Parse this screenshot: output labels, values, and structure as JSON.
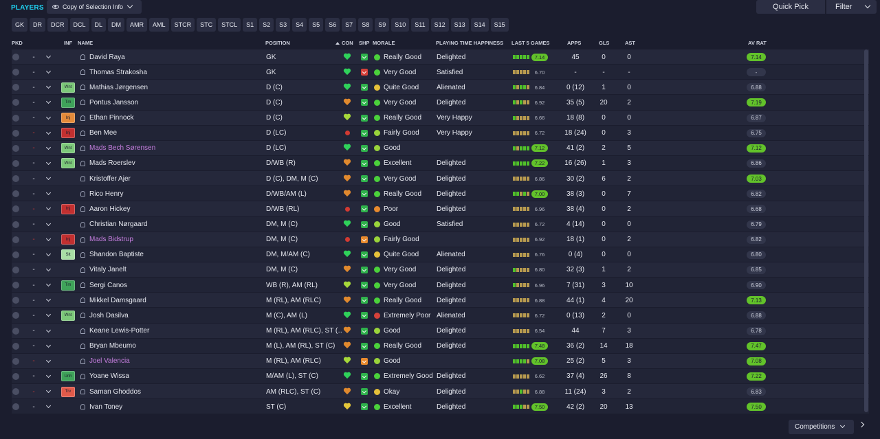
{
  "header": {
    "title": "PLAYERS",
    "view_select": "Copy of Selection Info",
    "quick_pick": "Quick Pick",
    "filter": "Filter"
  },
  "position_filters": [
    "GK",
    "DR",
    "DCR",
    "DCL",
    "DL",
    "DM",
    "AMR",
    "AML",
    "STCR",
    "STC",
    "STCL",
    "S1",
    "S2",
    "S3",
    "S4",
    "S5",
    "S6",
    "S7",
    "S8",
    "S9",
    "S10",
    "S11",
    "S12",
    "S13",
    "S14",
    "S15"
  ],
  "columns": {
    "pkd": "PKD",
    "inf": "INF",
    "name": "NAME",
    "position": "POSITION",
    "con": "CON",
    "shp": "SHP",
    "morale": "MORALE",
    "happiness": "PLAYING TIME HAPPINESS",
    "form": "LAST 5 GAMES",
    "apps": "APPS",
    "gls": "GLS",
    "ast": "AST",
    "avrat": "AV RAT"
  },
  "colors": {
    "con_green": "#2fd15a",
    "con_orange": "#e0892e",
    "con_lime": "#a6d83a",
    "con_red": "#d23a32",
    "con_yellow": "#e3c63a",
    "shp_green": "#2fb24c",
    "shp_red": "#d6413a",
    "shp_orange": "#e88a2e",
    "morale_green": "#4bd13b",
    "morale_lime": "#9ad43b",
    "morale_yellow": "#e6c13a",
    "morale_orange": "#e88a2e",
    "morale_red": "#d6413a",
    "form_green": "#51c12a",
    "form_gold": "#b79a4f"
  },
  "players": [
    {
      "pkd_red": false,
      "inf": "",
      "inf_color": "",
      "name": "David Raya",
      "pink": false,
      "position": "GK",
      "con": "heart",
      "con_color": "#2fd15a",
      "shp_color": "#2fb24c",
      "morale": "Really Good",
      "morale_color": "#4bd13b",
      "happiness": "Delighted",
      "form_bars": [
        "g",
        "g",
        "g",
        "g",
        "g"
      ],
      "form_rating": "7.14",
      "form_green": true,
      "apps": "45",
      "gls": "0",
      "ast": "0",
      "avrat": "7.14",
      "avrat_green": true
    },
    {
      "pkd_red": false,
      "inf": "",
      "inf_color": "",
      "name": "Thomas Strakosha",
      "pink": false,
      "position": "GK",
      "con": "heart",
      "con_color": "#2fd15a",
      "shp_color": "#d6413a",
      "morale": "Very Good",
      "morale_color": "#4bd13b",
      "happiness": "Satisfied",
      "form_bars": [
        "y",
        "y",
        "y",
        "y",
        "y"
      ],
      "form_rating": "6.70",
      "form_green": false,
      "apps": "-",
      "gls": "-",
      "ast": "-",
      "avrat": "-",
      "avrat_green": false
    },
    {
      "pkd_red": false,
      "inf": "Wnt",
      "inf_color": "#7dc97a",
      "name": "Mathias Jørgensen",
      "pink": false,
      "position": "D (C)",
      "con": "heart",
      "con_color": "#2fd15a",
      "shp_color": "#2fb24c",
      "morale": "Quite Good",
      "morale_color": "#e6c13a",
      "happiness": "Alienated",
      "form_bars": [
        "g",
        "y",
        "g",
        "g",
        "y"
      ],
      "form_rating": "6.84",
      "form_green": false,
      "apps": "0 (12)",
      "gls": "1",
      "ast": "0",
      "avrat": "6.88",
      "avrat_green": false
    },
    {
      "pkd_red": false,
      "inf": "Tm",
      "inf_color": "#3fa35a",
      "name": "Pontus Jansson",
      "pink": false,
      "position": "D (C)",
      "con": "heart",
      "con_color": "#e0892e",
      "shp_color": "#2fb24c",
      "morale": "Very Good",
      "morale_color": "#4bd13b",
      "happiness": "Delighted",
      "form_bars": [
        "g",
        "y",
        "g",
        "y",
        "y"
      ],
      "form_rating": "6.92",
      "form_green": false,
      "apps": "35 (5)",
      "gls": "20",
      "ast": "2",
      "avrat": "7.19",
      "avrat_green": true
    },
    {
      "pkd_red": false,
      "inf": "Inj",
      "inf_color": "#e38a3a",
      "name": "Ethan Pinnock",
      "pink": false,
      "position": "D (C)",
      "con": "heart",
      "con_color": "#a6d83a",
      "shp_color": "#2fb24c",
      "morale": "Really Good",
      "morale_color": "#4bd13b",
      "happiness": "Very Happy",
      "form_bars": [
        "g",
        "y",
        "y",
        "y",
        "y"
      ],
      "form_rating": "6.66",
      "form_green": false,
      "apps": "18 (8)",
      "gls": "0",
      "ast": "0",
      "avrat": "6.87",
      "avrat_green": false
    },
    {
      "pkd_red": true,
      "inf": "Inj",
      "inf_color": "#c23030",
      "name": "Ben Mee",
      "pink": false,
      "position": "D (LC)",
      "con": "dot",
      "con_color": "#d23a32",
      "shp_color": "#2fb24c",
      "morale": "Fairly Good",
      "morale_color": "#9ad43b",
      "happiness": "Very Happy",
      "form_bars": [
        "y",
        "y",
        "y",
        "y",
        "y"
      ],
      "form_rating": "6.72",
      "form_green": false,
      "apps": "18 (24)",
      "gls": "0",
      "ast": "3",
      "avrat": "6.75",
      "avrat_green": false
    },
    {
      "pkd_red": true,
      "inf": "Wnt",
      "inf_color": "#7dc97a",
      "name": "Mads Bech Sørensen",
      "pink": true,
      "position": "D (LC)",
      "con": "heart",
      "con_color": "#2fd15a",
      "shp_color": "#2fb24c",
      "morale": "Good",
      "morale_color": "#9ad43b",
      "happiness": "",
      "form_bars": [
        "g",
        "y",
        "g",
        "g",
        "g"
      ],
      "form_rating": "7.12",
      "form_green": true,
      "apps": "41 (2)",
      "gls": "2",
      "ast": "5",
      "avrat": "7.12",
      "avrat_green": true
    },
    {
      "pkd_red": false,
      "inf": "Wnt",
      "inf_color": "#7dc97a",
      "name": "Mads Roerslev",
      "pink": false,
      "position": "D/WB (R)",
      "con": "heart",
      "con_color": "#e0892e",
      "shp_color": "#2fb24c",
      "morale": "Excellent",
      "morale_color": "#4bd13b",
      "happiness": "Delighted",
      "form_bars": [
        "g",
        "g",
        "g",
        "g",
        "g"
      ],
      "form_rating": "7.22",
      "form_green": true,
      "apps": "16 (26)",
      "gls": "1",
      "ast": "3",
      "avrat": "6.86",
      "avrat_green": false
    },
    {
      "pkd_red": false,
      "inf": "",
      "inf_color": "",
      "name": "Kristoffer Ajer",
      "pink": false,
      "position": "D (C), DM, M (C)",
      "con": "heart",
      "con_color": "#e0892e",
      "shp_color": "#2fb24c",
      "morale": "Very Good",
      "morale_color": "#4bd13b",
      "happiness": "Delighted",
      "form_bars": [
        "y",
        "y",
        "y",
        "y",
        "y"
      ],
      "form_rating": "6.86",
      "form_green": false,
      "apps": "30 (2)",
      "gls": "6",
      "ast": "2",
      "avrat": "7.03",
      "avrat_green": true
    },
    {
      "pkd_red": false,
      "inf": "",
      "inf_color": "",
      "name": "Rico Henry",
      "pink": false,
      "position": "D/WB/AM (L)",
      "con": "heart",
      "con_color": "#e0892e",
      "shp_color": "#2fb24c",
      "morale": "Really Good",
      "morale_color": "#4bd13b",
      "happiness": "Delighted",
      "form_bars": [
        "g",
        "g",
        "y",
        "g",
        "y"
      ],
      "form_rating": "7.00",
      "form_green": true,
      "apps": "38 (3)",
      "gls": "0",
      "ast": "7",
      "avrat": "6.82",
      "avrat_green": false
    },
    {
      "pkd_red": true,
      "inf": "Inj",
      "inf_color": "#c23030",
      "name": "Aaron Hickey",
      "pink": false,
      "position": "D/WB (RL)",
      "con": "dot",
      "con_color": "#d23a32",
      "shp_color": "#2fb24c",
      "morale": "Poor",
      "morale_color": "#e88a2e",
      "happiness": "Delighted",
      "form_bars": [
        "y",
        "y",
        "y",
        "y",
        "y"
      ],
      "form_rating": "6.96",
      "form_green": false,
      "apps": "38 (4)",
      "gls": "0",
      "ast": "2",
      "avrat": "6.68",
      "avrat_green": false
    },
    {
      "pkd_red": false,
      "inf": "",
      "inf_color": "",
      "name": "Christian Nørgaard",
      "pink": false,
      "position": "DM, M (C)",
      "con": "heart",
      "con_color": "#2fd15a",
      "shp_color": "#2fb24c",
      "morale": "Good",
      "morale_color": "#9ad43b",
      "happiness": "Satisfied",
      "form_bars": [
        "y",
        "y",
        "y",
        "y",
        "y"
      ],
      "form_rating": "6.72",
      "form_green": false,
      "apps": "4 (14)",
      "gls": "0",
      "ast": "0",
      "avrat": "6.79",
      "avrat_green": false
    },
    {
      "pkd_red": true,
      "inf": "Inj",
      "inf_color": "#c23030",
      "name": "Mads Bidstrup",
      "pink": true,
      "position": "DM, M (C)",
      "con": "dot",
      "con_color": "#d23a32",
      "shp_color": "#e88a2e",
      "morale": "Fairly Good",
      "morale_color": "#9ad43b",
      "happiness": "",
      "form_bars": [
        "y",
        "y",
        "y",
        "y",
        "y"
      ],
      "form_rating": "6.92",
      "form_green": false,
      "apps": "18 (1)",
      "gls": "0",
      "ast": "2",
      "avrat": "6.82",
      "avrat_green": false
    },
    {
      "pkd_red": false,
      "inf": "Slt",
      "inf_color": "#a9dfa5",
      "name": "Shandon Baptiste",
      "pink": false,
      "position": "DM, M/AM (C)",
      "con": "heart",
      "con_color": "#2fd15a",
      "shp_color": "#2fb24c",
      "morale": "Quite Good",
      "morale_color": "#e6c13a",
      "happiness": "Alienated",
      "form_bars": [
        "y",
        "y",
        "y",
        "y",
        "y"
      ],
      "form_rating": "6.76",
      "form_green": false,
      "apps": "0 (4)",
      "gls": "0",
      "ast": "0",
      "avrat": "6.80",
      "avrat_green": false
    },
    {
      "pkd_red": false,
      "inf": "",
      "inf_color": "",
      "name": "Vitaly Janelt",
      "pink": false,
      "position": "DM, M (C)",
      "con": "heart",
      "con_color": "#e0892e",
      "shp_color": "#2fb24c",
      "morale": "Very Good",
      "morale_color": "#4bd13b",
      "happiness": "Delighted",
      "form_bars": [
        "g",
        "y",
        "y",
        "y",
        "y"
      ],
      "form_rating": "6.80",
      "form_green": false,
      "apps": "32 (3)",
      "gls": "1",
      "ast": "2",
      "avrat": "6.85",
      "avrat_green": false
    },
    {
      "pkd_red": false,
      "inf": "Tm",
      "inf_color": "#3fa35a",
      "name": "Sergi Canos",
      "pink": false,
      "position": "WB (R), AM (RL)",
      "con": "heart",
      "con_color": "#a6d83a",
      "shp_color": "#2fb24c",
      "morale": "Very Good",
      "morale_color": "#4bd13b",
      "happiness": "Delighted",
      "form_bars": [
        "g",
        "y",
        "y",
        "y",
        "y"
      ],
      "form_rating": "6.96",
      "form_green": false,
      "apps": "7 (31)",
      "gls": "3",
      "ast": "10",
      "avrat": "6.90",
      "avrat_green": false
    },
    {
      "pkd_red": false,
      "inf": "",
      "inf_color": "",
      "name": "Mikkel Damsgaard",
      "pink": false,
      "position": "M (RL), AM (RLC)",
      "con": "heart",
      "con_color": "#e0892e",
      "shp_color": "#2fb24c",
      "morale": "Really Good",
      "morale_color": "#4bd13b",
      "happiness": "Delighted",
      "form_bars": [
        "y",
        "y",
        "y",
        "y",
        "y"
      ],
      "form_rating": "6.88",
      "form_green": false,
      "apps": "44 (1)",
      "gls": "4",
      "ast": "20",
      "avrat": "7.13",
      "avrat_green": true
    },
    {
      "pkd_red": false,
      "inf": "Wnt",
      "inf_color": "#7dc97a",
      "name": "Josh Dasilva",
      "pink": false,
      "position": "M (C), AM (L)",
      "con": "heart",
      "con_color": "#2fd15a",
      "shp_color": "#2fb24c",
      "morale": "Extremely Poor",
      "morale_color": "#d6413a",
      "happiness": "Alienated",
      "form_bars": [
        "y",
        "y",
        "y",
        "y",
        "y"
      ],
      "form_rating": "6.72",
      "form_green": false,
      "apps": "0 (13)",
      "gls": "2",
      "ast": "0",
      "avrat": "6.88",
      "avrat_green": false
    },
    {
      "pkd_red": false,
      "inf": "",
      "inf_color": "",
      "name": "Keane Lewis-Potter",
      "pink": false,
      "position": "M (RL), AM (RLC), ST (…",
      "con": "heart",
      "con_color": "#e0892e",
      "shp_color": "#2fb24c",
      "morale": "Good",
      "morale_color": "#9ad43b",
      "happiness": "Delighted",
      "form_bars": [
        "y",
        "y",
        "y",
        "y",
        "y"
      ],
      "form_rating": "6.54",
      "form_green": false,
      "apps": "44",
      "gls": "7",
      "ast": "3",
      "avrat": "6.78",
      "avrat_green": false
    },
    {
      "pkd_red": false,
      "inf": "",
      "inf_color": "",
      "name": "Bryan Mbeumo",
      "pink": false,
      "position": "M (L), AM (RL), ST (C)",
      "con": "heart",
      "con_color": "#e0892e",
      "shp_color": "#2fb24c",
      "morale": "Really Good",
      "morale_color": "#4bd13b",
      "happiness": "Delighted",
      "form_bars": [
        "g",
        "g",
        "g",
        "g",
        "g"
      ],
      "form_rating": "7.48",
      "form_green": true,
      "apps": "36 (2)",
      "gls": "14",
      "ast": "18",
      "avrat": "7.47",
      "avrat_green": true
    },
    {
      "pkd_red": true,
      "inf": "",
      "inf_color": "",
      "name": "Joel Valencia",
      "pink": true,
      "position": "M (RL), AM (RLC)",
      "con": "heart",
      "con_color": "#a6d83a",
      "shp_color": "#e88a2e",
      "morale": "Good",
      "morale_color": "#9ad43b",
      "happiness": "",
      "form_bars": [
        "g",
        "g",
        "g",
        "g",
        "y"
      ],
      "form_rating": "7.08",
      "form_green": true,
      "apps": "25 (2)",
      "gls": "5",
      "ast": "3",
      "avrat": "7.08",
      "avrat_green": true
    },
    {
      "pkd_red": false,
      "inf": "Unh",
      "inf_color": "#3fa35a",
      "name": "Yoane Wissa",
      "pink": false,
      "position": "M/AM (L), ST (C)",
      "con": "heart",
      "con_color": "#2fd15a",
      "shp_color": "#2fb24c",
      "morale": "Extremely Good",
      "morale_color": "#4bd13b",
      "happiness": "Delighted",
      "form_bars": [
        "y",
        "y",
        "y",
        "y",
        "y"
      ],
      "form_rating": "6.62",
      "form_green": false,
      "apps": "37 (4)",
      "gls": "26",
      "ast": "8",
      "avrat": "7.22",
      "avrat_green": true
    },
    {
      "pkd_red": true,
      "inf": "Trv",
      "inf_color": "#e05a4a",
      "name": "Saman Ghoddos",
      "pink": false,
      "position": "AM (RLC), ST (C)",
      "con": "heart",
      "con_color": "#e0892e",
      "shp_color": "#2fb24c",
      "morale": "Okay",
      "morale_color": "#e6c13a",
      "happiness": "Delighted",
      "form_bars": [
        "y",
        "y",
        "g",
        "y",
        "y"
      ],
      "form_rating": "6.88",
      "form_green": false,
      "apps": "11 (24)",
      "gls": "3",
      "ast": "2",
      "avrat": "6.83",
      "avrat_green": false
    },
    {
      "pkd_red": false,
      "inf": "",
      "inf_color": "",
      "name": "Ivan Toney",
      "pink": false,
      "position": "ST (C)",
      "con": "heart",
      "con_color": "#e3c63a",
      "shp_color": "#2fb24c",
      "morale": "Excellent",
      "morale_color": "#4bd13b",
      "happiness": "Delighted",
      "form_bars": [
        "g",
        "g",
        "g",
        "y",
        "y"
      ],
      "form_rating": "7.50",
      "form_green": true,
      "apps": "42 (2)",
      "gls": "20",
      "ast": "13",
      "avrat": "7.50",
      "avrat_green": true
    }
  ],
  "footer": {
    "competitions": "Competitions"
  }
}
